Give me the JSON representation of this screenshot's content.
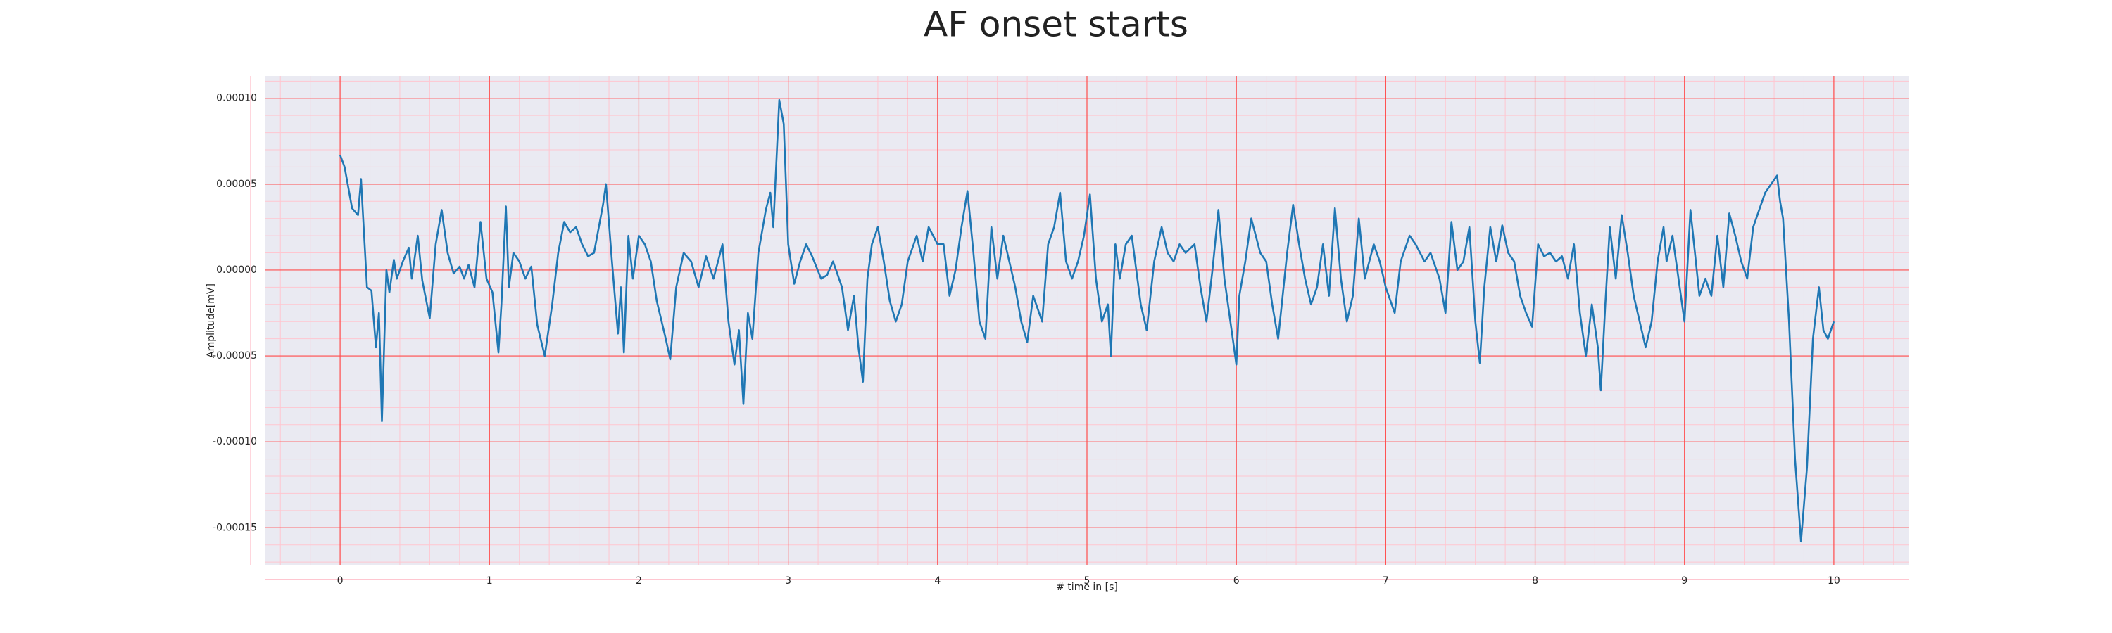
{
  "chart_data": {
    "type": "line",
    "title": "AF onset starts",
    "xlabel": "# time in [s]",
    "ylabel": "Amplitude[mV]",
    "color": "#1f77b4",
    "grid": true,
    "grid_color": "#ff4d4d",
    "minor_grid": true,
    "minor_grid_color": "#ffc6d0",
    "minor_divisions": 5,
    "background": "#eaeaf2",
    "xlim": [
      -0.5,
      10.5
    ],
    "ylim": [
      -0.000172,
      0.000113
    ],
    "xticks": [
      0,
      1,
      2,
      3,
      4,
      5,
      6,
      7,
      8,
      9,
      10
    ],
    "yticks": [
      {
        "value": -0.00015,
        "label": "-0.00015"
      },
      {
        "value": -0.0001,
        "label": "-0.00010"
      },
      {
        "value": -5e-05,
        "label": "-0.00005"
      },
      {
        "value": 0,
        "label": "0.00000"
      },
      {
        "value": 5e-05,
        "label": "0.00005"
      },
      {
        "value": 0.0001,
        "label": "0.00010"
      }
    ],
    "x": [
      0,
      0.03,
      0.08,
      0.12,
      0.14,
      0.18,
      0.21,
      0.24,
      0.26,
      0.28,
      0.31,
      0.33,
      0.36,
      0.38,
      0.42,
      0.46,
      0.48,
      0.52,
      0.55,
      0.6,
      0.64,
      0.68,
      0.72,
      0.76,
      0.8,
      0.83,
      0.86,
      0.9,
      0.94,
      0.98,
      1.02,
      1.06,
      1.08,
      1.11,
      1.13,
      1.16,
      1.2,
      1.24,
      1.28,
      1.32,
      1.37,
      1.42,
      1.46,
      1.5,
      1.54,
      1.58,
      1.62,
      1.66,
      1.7,
      1.76,
      1.78,
      1.82,
      1.86,
      1.88,
      1.9,
      1.93,
      1.96,
      2,
      2.04,
      2.08,
      2.12,
      2.18,
      2.21,
      2.25,
      2.3,
      2.35,
      2.4,
      2.45,
      2.5,
      2.56,
      2.6,
      2.64,
      2.67,
      2.7,
      2.73,
      2.76,
      2.8,
      2.85,
      2.88,
      2.9,
      2.94,
      2.97,
      3,
      3.04,
      3.08,
      3.12,
      3.16,
      3.22,
      3.26,
      3.3,
      3.36,
      3.4,
      3.44,
      3.47,
      3.5,
      3.53,
      3.56,
      3.6,
      3.64,
      3.68,
      3.72,
      3.76,
      3.8,
      3.86,
      3.9,
      3.94,
      4,
      4.04,
      4.08,
      4.12,
      4.16,
      4.2,
      4.24,
      4.28,
      4.32,
      4.36,
      4.4,
      4.44,
      4.48,
      4.52,
      4.56,
      4.6,
      4.64,
      4.7,
      4.74,
      4.78,
      4.82,
      4.86,
      4.9,
      4.94,
      4.98,
      5.02,
      5.06,
      5.1,
      5.14,
      5.16,
      5.19,
      5.22,
      5.26,
      5.3,
      5.36,
      5.4,
      5.45,
      5.5,
      5.54,
      5.58,
      5.62,
      5.66,
      5.72,
      5.76,
      5.8,
      5.84,
      5.88,
      5.92,
      5.96,
      6,
      6.02,
      6.06,
      6.1,
      6.16,
      6.2,
      6.24,
      6.28,
      6.34,
      6.38,
      6.42,
      6.46,
      6.5,
      6.54,
      6.58,
      6.62,
      6.66,
      6.7,
      6.74,
      6.78,
      6.82,
      6.86,
      6.92,
      6.96,
      7,
      7.06,
      7.1,
      7.16,
      7.2,
      7.26,
      7.3,
      7.36,
      7.4,
      7.44,
      7.48,
      7.52,
      7.56,
      7.6,
      7.63,
      7.66,
      7.7,
      7.74,
      7.78,
      7.82,
      7.86,
      7.9,
      7.94,
      7.98,
      8.02,
      8.06,
      8.1,
      8.14,
      8.18,
      8.22,
      8.26,
      8.3,
      8.34,
      8.38,
      8.42,
      8.44,
      8.47,
      8.5,
      8.54,
      8.58,
      8.62,
      8.66,
      8.7,
      8.74,
      8.78,
      8.82,
      8.86,
      8.88,
      8.92,
      8.96,
      9,
      9.04,
      9.07,
      9.1,
      9.14,
      9.18,
      9.22,
      9.26,
      9.3,
      9.34,
      9.38,
      9.42,
      9.46,
      9.5,
      9.54,
      9.58,
      9.62,
      9.64,
      9.66,
      9.7,
      9.74,
      9.78,
      9.82,
      9.86,
      9.9,
      9.93,
      9.96,
      10
    ],
    "values": [
      6.7e-05,
      6e-05,
      3.6e-05,
      3.2e-05,
      5.3e-05,
      -1e-05,
      -1.2e-05,
      -4.5e-05,
      -2.5e-05,
      -8.8e-05,
      0,
      -1.3e-05,
      6e-06,
      -5e-06,
      5e-06,
      1.3e-05,
      -5e-06,
      2e-05,
      -6e-06,
      -2.8e-05,
      1.5e-05,
      3.5e-05,
      1e-05,
      -2e-06,
      2e-06,
      -5e-06,
      3e-06,
      -1e-05,
      2.8e-05,
      -5e-06,
      -1.3e-05,
      -4.8e-05,
      -2e-05,
      3.7e-05,
      -1e-05,
      1e-05,
      5e-06,
      -5e-06,
      2e-06,
      -3.2e-05,
      -5e-05,
      -2e-05,
      1e-05,
      2.8e-05,
      2.2e-05,
      2.5e-05,
      1.5e-05,
      8e-06,
      1e-05,
      3.8e-05,
      5e-05,
      5e-06,
      -3.7e-05,
      -1e-05,
      -4.8e-05,
      2e-05,
      -5e-06,
      2e-05,
      1.5e-05,
      5e-06,
      -1.8e-05,
      -4e-05,
      -5.2e-05,
      -1e-05,
      1e-05,
      5e-06,
      -1e-05,
      8e-06,
      -5e-06,
      1.5e-05,
      -3e-05,
      -5.5e-05,
      -3.5e-05,
      -7.8e-05,
      -2.5e-05,
      -4e-05,
      1e-05,
      3.5e-05,
      4.5e-05,
      2.5e-05,
      9.9e-05,
      8.5e-05,
      1.5e-05,
      -8e-06,
      5e-06,
      1.5e-05,
      8e-06,
      -5e-06,
      -3e-06,
      5e-06,
      -1e-05,
      -3.5e-05,
      -1.5e-05,
      -4.5e-05,
      -6.5e-05,
      -5e-06,
      1.5e-05,
      2.5e-05,
      5e-06,
      -1.8e-05,
      -3e-05,
      -2e-05,
      5e-06,
      2e-05,
      5e-06,
      2.5e-05,
      1.5e-05,
      1.5e-05,
      -1.5e-05,
      0,
      2.5e-05,
      4.6e-05,
      1e-05,
      -3e-05,
      -4e-05,
      2.5e-05,
      -5e-06,
      2e-05,
      5e-06,
      -1e-05,
      -3e-05,
      -4.2e-05,
      -1.5e-05,
      -3e-05,
      1.5e-05,
      2.5e-05,
      4.5e-05,
      5e-06,
      -5e-06,
      5e-06,
      2e-05,
      4.4e-05,
      -5e-06,
      -3e-05,
      -2e-05,
      -5e-05,
      1.5e-05,
      -5e-06,
      1.5e-05,
      2e-05,
      -2e-05,
      -3.5e-05,
      5e-06,
      2.5e-05,
      1e-05,
      5e-06,
      1.5e-05,
      1e-05,
      1.5e-05,
      -1e-05,
      -3e-05,
      0,
      3.5e-05,
      -5e-06,
      -3e-05,
      -5.5e-05,
      -1.5e-05,
      5e-06,
      3e-05,
      1e-05,
      5e-06,
      -2e-05,
      -4e-05,
      1e-05,
      3.8e-05,
      1.5e-05,
      -5e-06,
      -2e-05,
      -1e-05,
      1.5e-05,
      -1.5e-05,
      3.6e-05,
      -5e-06,
      -3e-05,
      -1.5e-05,
      3e-05,
      -5e-06,
      1.5e-05,
      5e-06,
      -1e-05,
      -2.5e-05,
      5e-06,
      2e-05,
      1.5e-05,
      5e-06,
      1e-05,
      -5e-06,
      -2.5e-05,
      2.8e-05,
      0,
      5e-06,
      2.5e-05,
      -3e-05,
      -5.4e-05,
      -1e-05,
      2.5e-05,
      5e-06,
      2.6e-05,
      1e-05,
      5e-06,
      -1.5e-05,
      -2.5e-05,
      -3.3e-05,
      1.5e-05,
      8e-06,
      1e-05,
      5e-06,
      8e-06,
      -5e-06,
      1.5e-05,
      -2.5e-05,
      -5e-05,
      -2e-05,
      -4.5e-05,
      -7e-05,
      -2e-05,
      2.5e-05,
      -5e-06,
      3.2e-05,
      1e-05,
      -1.5e-05,
      -3e-05,
      -4.5e-05,
      -3e-05,
      5e-06,
      2.5e-05,
      5e-06,
      2e-05,
      -5e-06,
      -3e-05,
      3.5e-05,
      1e-05,
      -1.5e-05,
      -5e-06,
      -1.5e-05,
      2e-05,
      -1e-05,
      3.3e-05,
      2e-05,
      5e-06,
      -5e-06,
      2.5e-05,
      3.5e-05,
      4.5e-05,
      5e-05,
      5.5e-05,
      4e-05,
      3e-05,
      -3e-05,
      -0.00011,
      -0.000158,
      -0.000115,
      -4e-05,
      -1e-05,
      -3.5e-05,
      -4e-05,
      -3e-05
    ]
  }
}
